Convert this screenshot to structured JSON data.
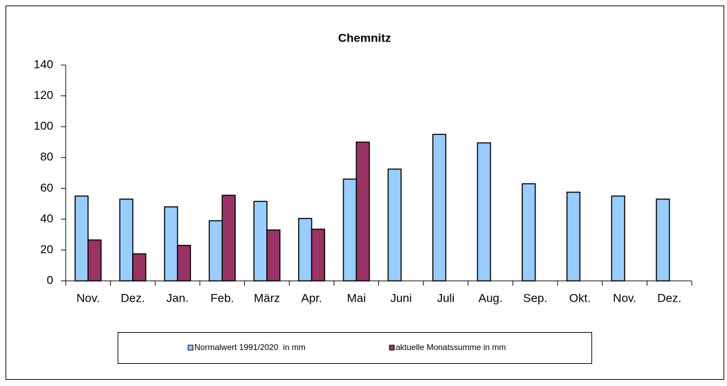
{
  "chart_data": {
    "type": "bar",
    "title": "Chemnitz",
    "categories": [
      "Nov.",
      "Dez.",
      "Jan.",
      "Feb.",
      "März",
      "Apr.",
      "Mai",
      "Juni",
      "Juli",
      "Aug.",
      "Sep.",
      "Okt.",
      "Nov.",
      "Dez."
    ],
    "series": [
      {
        "name": "Normalwert 1991/2020  in mm",
        "color": "#99ccff",
        "values": [
          55,
          53,
          48,
          39,
          51.5,
          40.5,
          66,
          72.5,
          95,
          89.5,
          63,
          57.5,
          55,
          53
        ]
      },
      {
        "name": "aktuelle Monatssumme in mm",
        "color": "#993366",
        "values": [
          26.5,
          17.5,
          23,
          55.5,
          33,
          33.5,
          90,
          null,
          null,
          null,
          null,
          null,
          null,
          null
        ]
      }
    ],
    "ylim": [
      0,
      140
    ],
    "yticks": [
      0,
      20,
      40,
      60,
      80,
      100,
      120,
      140
    ],
    "grid": false,
    "legend": "bottom"
  }
}
